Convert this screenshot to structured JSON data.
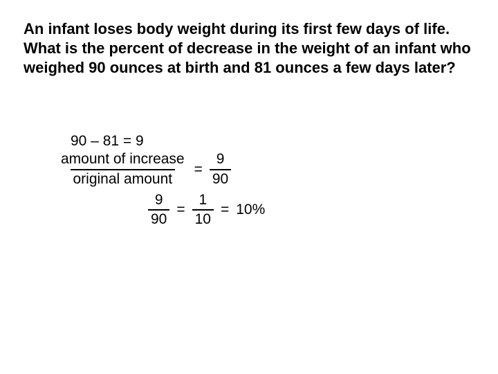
{
  "question": "An infant loses body weight during its first few days of life. What is the percent of decrease in the weight of an infant who weighed 90 ounces at birth and 81 ounces a few days later?",
  "work": {
    "subtraction": "90 – 81 = 9",
    "ratio_label_num": "amount of increase",
    "ratio_label_den": "original amount",
    "eq": "=",
    "frac1_num": "9",
    "frac1_den": "90",
    "frac2_num": "9",
    "frac2_den": "90",
    "frac3_num": "1",
    "frac3_den": "10",
    "result": "10%"
  }
}
